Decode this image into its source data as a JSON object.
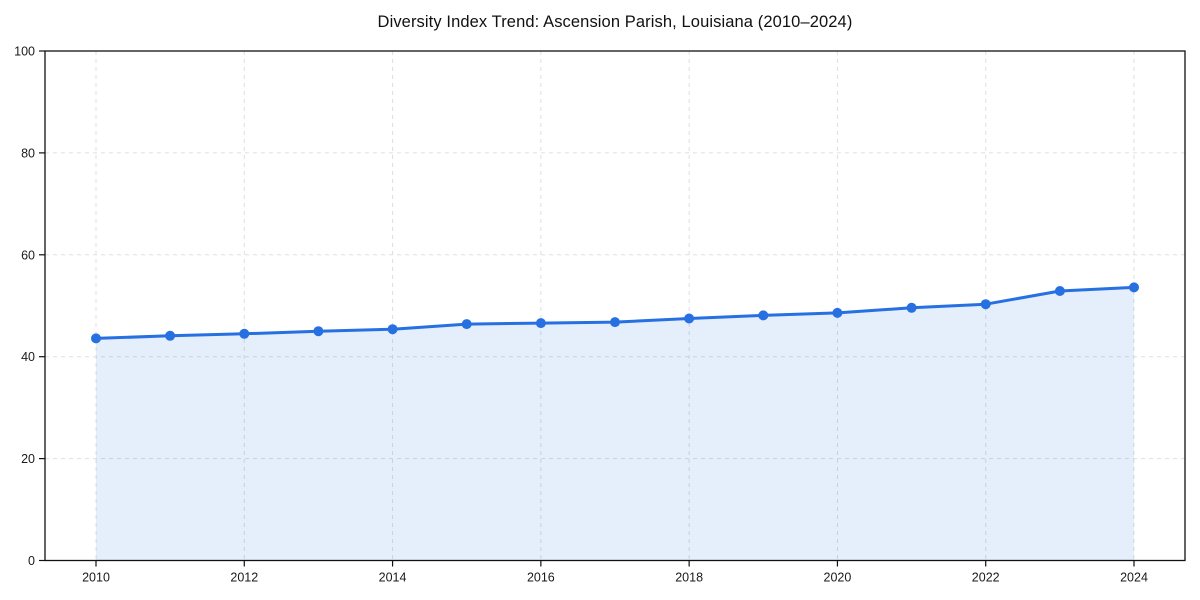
{
  "page": {
    "background": "#ffffff"
  },
  "chart_data": {
    "type": "area",
    "title": "Diversity Index Trend: Ascension Parish, Louisiana (2010–2024)",
    "xlabel": "",
    "ylabel": "",
    "x": [
      2010,
      2011,
      2012,
      2013,
      2014,
      2015,
      2016,
      2017,
      2018,
      2019,
      2020,
      2021,
      2022,
      2023,
      2024
    ],
    "series": [
      {
        "name": "Diversity Index",
        "values": [
          43.6,
          44.1,
          44.5,
          45.0,
          45.4,
          46.4,
          46.6,
          46.8,
          47.5,
          48.1,
          48.6,
          49.6,
          50.3,
          52.9,
          53.6
        ]
      }
    ],
    "ylim": [
      0,
      100
    ],
    "xlim": [
      2010,
      2024
    ],
    "y_ticks": [
      0,
      20,
      40,
      60,
      80,
      100
    ],
    "y_tick_labels": [
      "0",
      "20",
      "40",
      "60",
      "80",
      "100"
    ],
    "x_ticks": [
      2010,
      2012,
      2014,
      2016,
      2018,
      2020,
      2022,
      2024
    ],
    "x_tick_labels": [
      "2010",
      "2012",
      "2014",
      "2016",
      "2018",
      "2020",
      "2022",
      "2024"
    ],
    "grid": "dashed, horizontal at y ticks and vertical at x ticks",
    "legend": "none",
    "marker": "filled circle",
    "colors": {
      "line": "#2670e2",
      "marker": "#2670e2",
      "fill": "rgba(38, 112, 226, 0.12)",
      "spine": "#111111",
      "grid": "#dfdfdf",
      "text": "#1a1a1a"
    }
  }
}
